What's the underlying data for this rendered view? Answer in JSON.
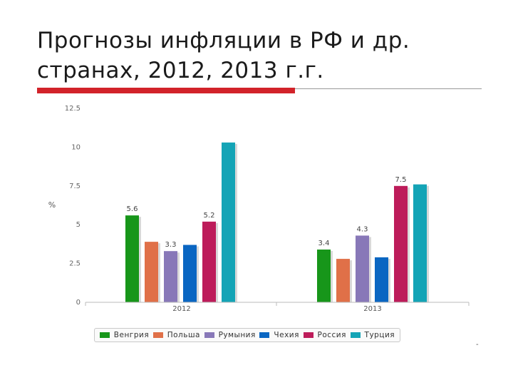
{
  "slide": {
    "title_line1": "Прогнозы инфляции в РФ и др.",
    "title_line2": "странах, 2012, 2013 г.г.",
    "accent_red": "#d2232a"
  },
  "chart_data": {
    "type": "bar",
    "title": "",
    "xlabel": "",
    "ylabel": "%",
    "ylim": [
      0,
      12.5
    ],
    "yticks": [
      "0",
      "2.5",
      "5",
      "7.5",
      "10",
      "12.5"
    ],
    "categories": [
      "2012",
      "2013"
    ],
    "grid": false,
    "legend_position": "bottom",
    "series": [
      {
        "name": "Венгрия",
        "color": "#17961a",
        "values": [
          5.6,
          3.4
        ],
        "labels": [
          "5.6",
          "3.4"
        ]
      },
      {
        "name": "Польша",
        "color": "#e07048",
        "values": [
          3.9,
          2.8
        ],
        "labels": [
          "",
          ""
        ]
      },
      {
        "name": "Румыния",
        "color": "#8878b8",
        "values": [
          3.3,
          4.3
        ],
        "labels": [
          "3.3",
          "4.3"
        ]
      },
      {
        "name": "Чехия",
        "color": "#0a66c2",
        "values": [
          3.7,
          2.9
        ],
        "labels": [
          "",
          ""
        ]
      },
      {
        "name": "Россия",
        "color": "#bd1c5a",
        "values": [
          5.2,
          7.5
        ],
        "labels": [
          "5.2",
          "7.5"
        ]
      },
      {
        "name": "Турция",
        "color": "#14a4b6",
        "values": [
          10.3,
          7.6
        ],
        "labels": [
          "",
          ""
        ]
      }
    ]
  }
}
